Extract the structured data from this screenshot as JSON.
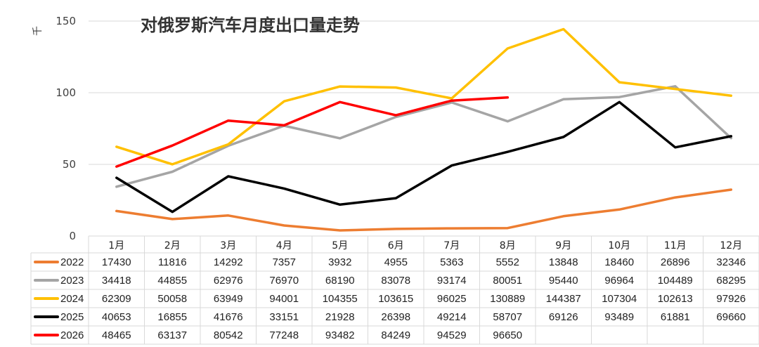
{
  "chart_data": {
    "type": "line",
    "title": "对俄罗斯汽车月度出口量走势",
    "ylabel": "千",
    "ylim": [
      0,
      150
    ],
    "yticks": [
      0,
      50,
      100,
      150
    ],
    "ytick_labels": [
      "0",
      "50",
      "100",
      "150"
    ],
    "grid": true,
    "legend": "data-table-below",
    "categories": [
      "1月",
      "2月",
      "3月",
      "4月",
      "5月",
      "6月",
      "7月",
      "8月",
      "9月",
      "10月",
      "11月",
      "12月"
    ],
    "series": [
      {
        "name": "2022",
        "color": "#ED7D31",
        "values": [
          17430,
          11816,
          14292,
          7357,
          3932,
          4955,
          5363,
          5552,
          13848,
          18460,
          26896,
          32346
        ]
      },
      {
        "name": "2023",
        "color": "#A5A5A5",
        "values": [
          34418,
          44855,
          62976,
          76970,
          68190,
          83078,
          93174,
          80051,
          95440,
          96964,
          104489,
          68295
        ]
      },
      {
        "name": "2024",
        "color": "#FFC000",
        "values": [
          62309,
          50058,
          63949,
          94001,
          104355,
          103615,
          96025,
          130889,
          144387,
          107304,
          102613,
          97926
        ]
      },
      {
        "name": "2025",
        "color": "#000000",
        "values": [
          40653,
          16855,
          41676,
          33151,
          21928,
          26398,
          49214,
          58707,
          69126,
          93489,
          61881,
          69660
        ]
      },
      {
        "name": "2026",
        "color": "#FF0000",
        "values": [
          48465,
          63137,
          80542,
          77248,
          93482,
          84249,
          94529,
          96650,
          null,
          null,
          null,
          null
        ]
      }
    ]
  }
}
